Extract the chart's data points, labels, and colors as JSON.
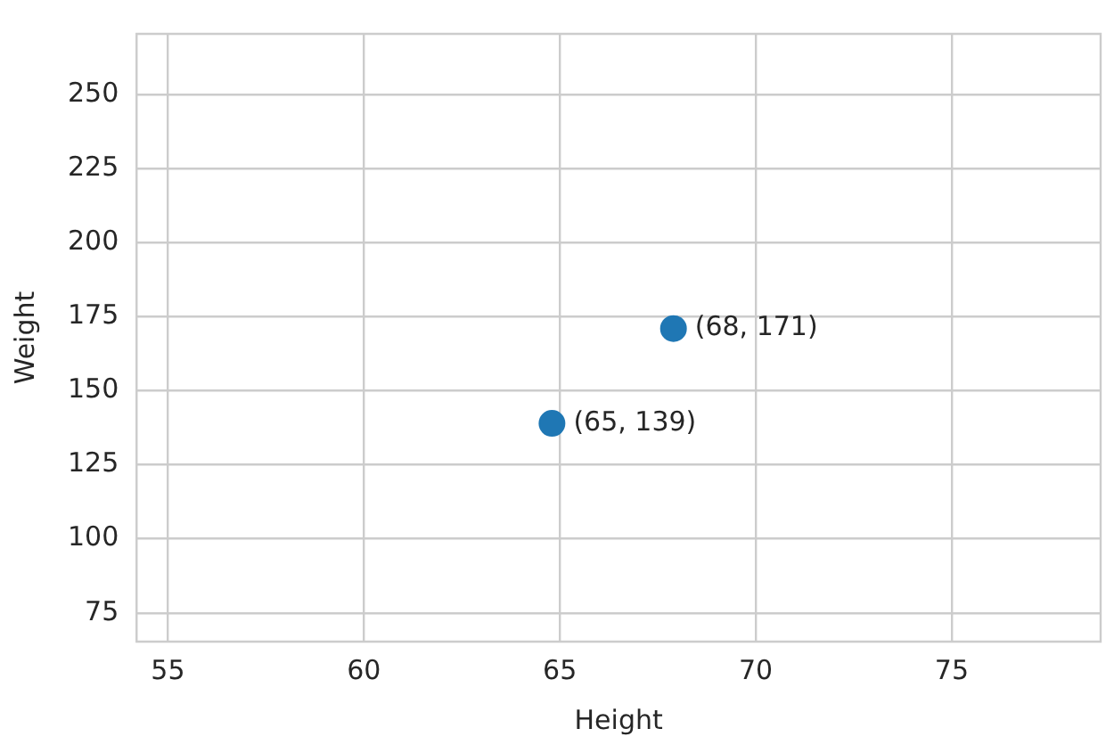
{
  "chart_data": {
    "type": "scatter",
    "xlabel": "Height",
    "ylabel": "Weight",
    "x": [
      64.8,
      67.9
    ],
    "series": [
      {
        "color": "#1f77b4",
        "values": [
          139,
          171
        ],
        "value_labels": [
          "(65, 139)",
          "(68, 171)"
        ]
      }
    ],
    "xlim": [
      54.2,
      78.8
    ],
    "xticks": [
      55,
      60,
      65,
      70,
      75
    ],
    "ylim": [
      65.3,
      270.5
    ],
    "yticks": [
      75,
      100,
      125,
      150,
      175,
      200,
      225,
      250
    ],
    "grid": true,
    "legend": false,
    "marker": "circle"
  }
}
